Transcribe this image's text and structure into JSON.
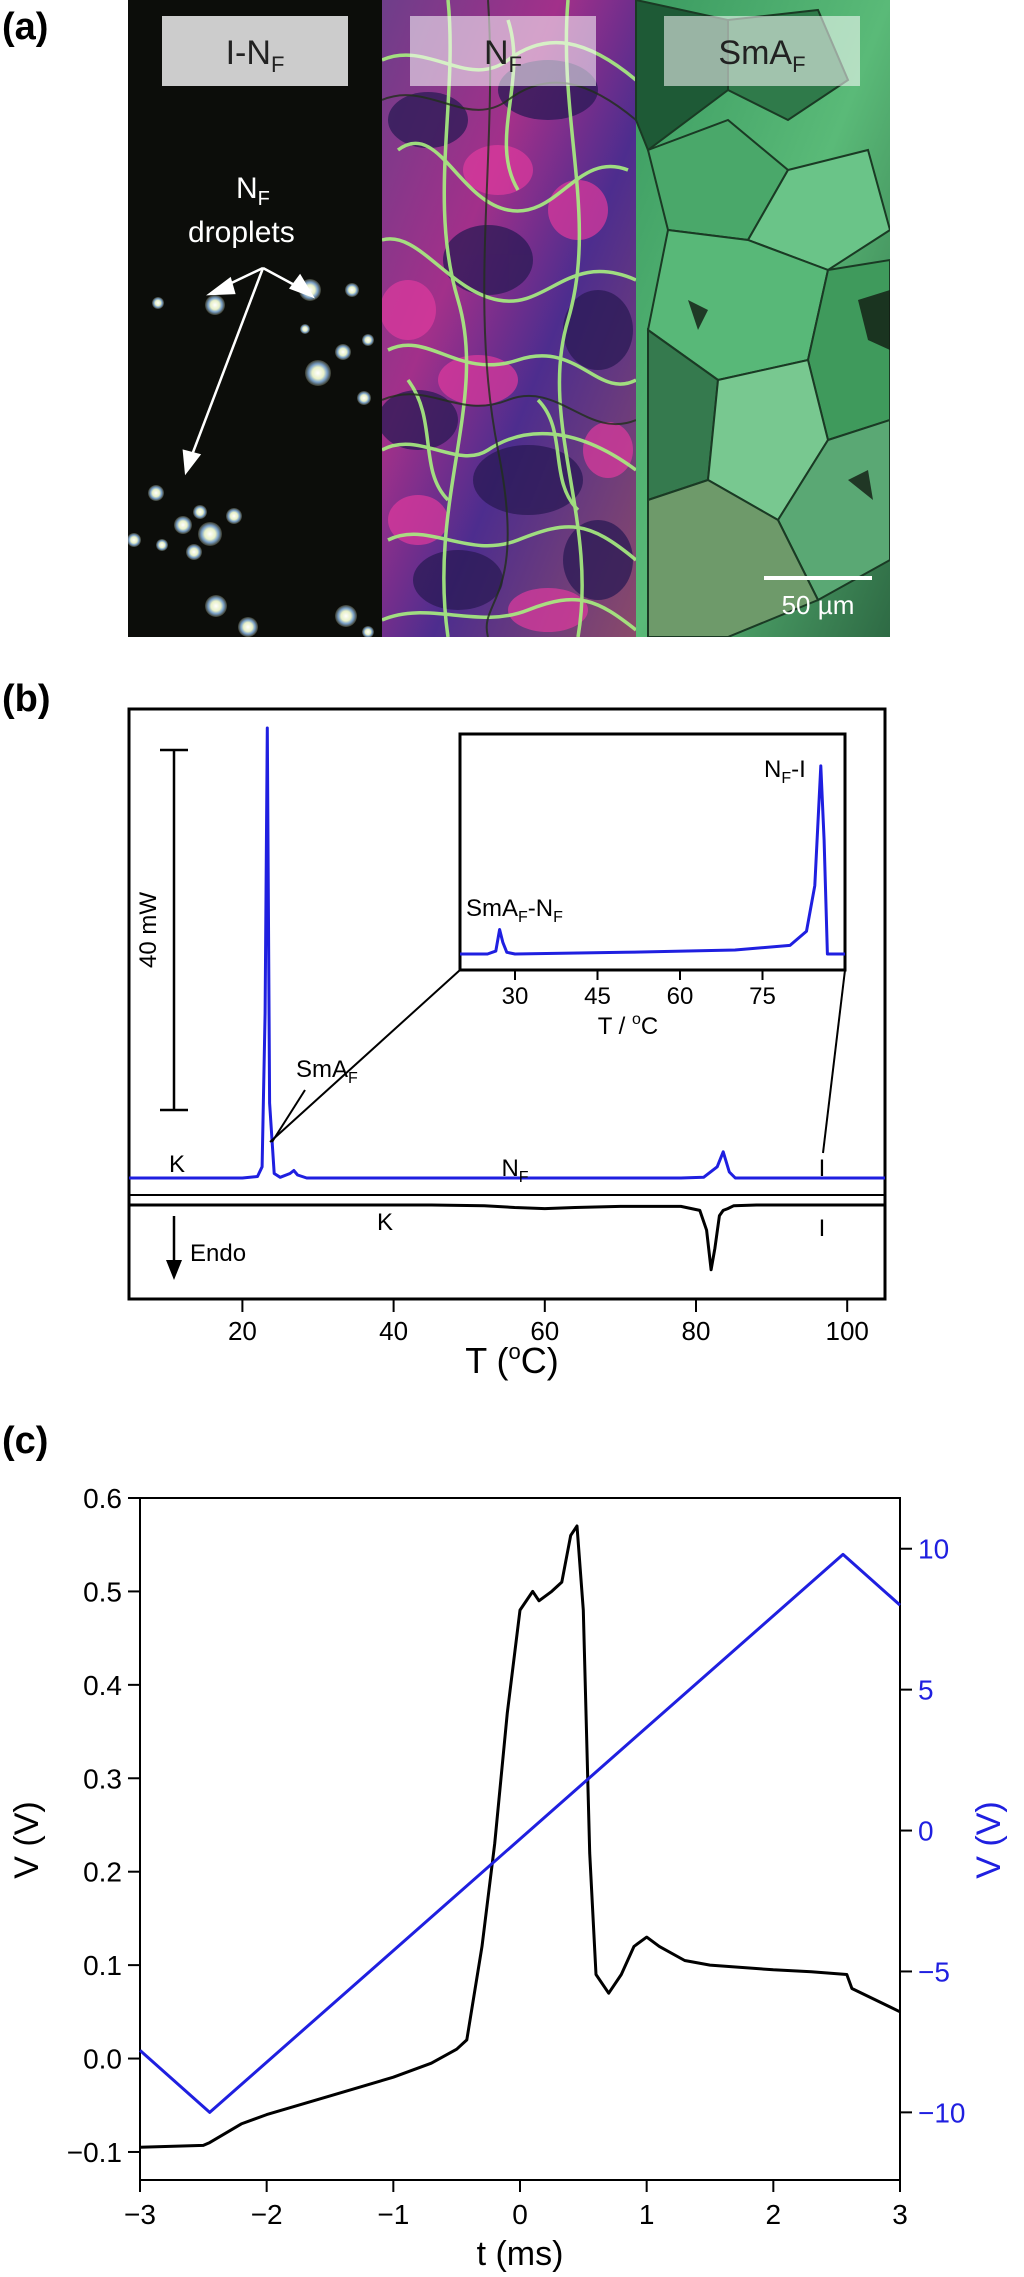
{
  "panel_a": {
    "label": "(a)",
    "images": [
      {
        "title": "I-N",
        "sub": "F"
      },
      {
        "title": "N",
        "sub": "F"
      },
      {
        "title": "SmA",
        "sub": "F"
      }
    ],
    "droplet_label_line1": "N",
    "droplet_label_sub": "F",
    "droplet_label_line2": "droplets",
    "scale_bar": "50 µm"
  },
  "panel_b": {
    "label": "(b)",
    "scale_label": "40 mW",
    "phase_K_top": "K",
    "phase_NF_main": "N",
    "phase_NF_sub": "F",
    "phase_I_top": "I",
    "phase_K_bottom": "K",
    "phase_I_bottom": "I",
    "smaf_label_main": "SmA",
    "smaf_label_sub": "F",
    "endo_label": "Endo",
    "inset_nfi_main": "N",
    "inset_nfi_sub": "F",
    "inset_nfi_tail": "-I",
    "inset_sman_main": "SmA",
    "inset_sman_sub1": "F",
    "inset_sman_mid": "-N",
    "inset_sman_sub2": "F",
    "inset_xlabel_main": "T / ",
    "inset_xlabel_sup": "o",
    "inset_xlabel_tail": "C",
    "xlabel_main": "T (",
    "xlabel_sup": "o",
    "xlabel_tail": "C)"
  },
  "panel_c": {
    "label": "(c)"
  },
  "chart_data": [
    {
      "type": "line",
      "id": "dsc",
      "x_ticks": [
        20,
        40,
        60,
        80,
        100
      ],
      "xlim": [
        5,
        105
      ],
      "series": [
        {
          "color": "#1f1fe0",
          "role": "cooling",
          "x": [
            5,
            20,
            22,
            22.6,
            23.0,
            23.3,
            23.6,
            24.2,
            25,
            26.3,
            26.8,
            27.3,
            28.5,
            40,
            60,
            78,
            81,
            82.8,
            83.6,
            84.4,
            85.2,
            90,
            105
          ],
          "y": [
            0,
            0,
            0.2,
            1.5,
            22,
            60,
            10,
            0.6,
            0.1,
            0.6,
            1.0,
            0.4,
            0,
            0,
            0,
            0,
            0.1,
            1.5,
            3.5,
            0.8,
            0,
            0,
            0
          ]
        },
        {
          "color": "#000000",
          "role": "heating",
          "x": [
            5,
            45,
            52,
            56,
            60,
            64,
            70,
            78,
            80.5,
            81.4,
            82.0,
            82.5,
            83.1,
            83.6,
            84.2,
            85,
            88,
            105
          ],
          "y": [
            0,
            0,
            -0.2,
            -0.7,
            -1.0,
            -0.7,
            -0.4,
            -0.4,
            -1.5,
            -7,
            -18,
            -12,
            -3,
            -1.5,
            -1.0,
            -0.2,
            0,
            0
          ]
        }
      ]
    },
    {
      "type": "line",
      "id": "dsc_inset",
      "x_ticks": [
        30,
        45,
        60,
        75
      ],
      "xlim": [
        20,
        90
      ],
      "series": [
        {
          "color": "#1f1fe0",
          "x": [
            20,
            25,
            26.5,
            27.2,
            27.8,
            28.5,
            30,
            50,
            70,
            80,
            83,
            84.5,
            85.6,
            86.2,
            86.8,
            90
          ],
          "y": [
            0,
            0,
            0.5,
            4.3,
            2.0,
            0.3,
            0,
            0.3,
            0.7,
            1.5,
            4,
            12,
            33,
            20,
            0,
            0
          ]
        }
      ]
    },
    {
      "type": "line",
      "id": "polarization",
      "x_ticks": [
        -3,
        -2,
        -1,
        0,
        1,
        2,
        3
      ],
      "xlim": [
        -3,
        3
      ],
      "xlabel": "t (ms)",
      "left_axis": {
        "label": "V (V)",
        "ticks": [
          "−0.1",
          "0.0",
          "0.1",
          "0.2",
          "0.3",
          "0.4",
          "0.5",
          "0.6"
        ],
        "tick_values": [
          -0.1,
          0,
          0.1,
          0.2,
          0.3,
          0.4,
          0.5,
          0.6
        ],
        "ylim": [
          -0.13,
          0.6
        ]
      },
      "right_axis": {
        "label": "V (V)",
        "ticks": [
          "−10",
          "−5",
          "0",
          "5",
          "10"
        ],
        "tick_values": [
          -10,
          -5,
          0,
          5,
          10
        ],
        "ylim": [
          -12.4,
          11.8
        ],
        "color": "#1f1fe0"
      },
      "series": [
        {
          "axis": "left",
          "color": "#000000",
          "x": [
            -3,
            -2.5,
            -2.45,
            -2.2,
            -2,
            -1.5,
            -1,
            -0.7,
            -0.5,
            -0.42,
            -0.3,
            -0.2,
            -0.1,
            0,
            0.1,
            0.15,
            0.25,
            0.33,
            0.4,
            0.45,
            0.5,
            0.55,
            0.6,
            0.7,
            0.8,
            0.9,
            1.0,
            1.1,
            1.3,
            1.5,
            2.0,
            2.3,
            2.58,
            2.62,
            3.0
          ],
          "y": [
            -0.095,
            -0.093,
            -0.09,
            -0.07,
            -0.06,
            -0.04,
            -0.02,
            -0.005,
            0.01,
            0.02,
            0.12,
            0.23,
            0.37,
            0.48,
            0.5,
            0.49,
            0.5,
            0.51,
            0.56,
            0.57,
            0.48,
            0.22,
            0.09,
            0.07,
            0.09,
            0.12,
            0.13,
            0.12,
            0.105,
            0.1,
            0.095,
            0.093,
            0.09,
            0.075,
            0.05
          ]
        },
        {
          "axis": "right",
          "color": "#1f1fe0",
          "x": [
            -3,
            -2.45,
            2.55,
            3
          ],
          "y": [
            -7.8,
            -10,
            9.8,
            8.0
          ]
        }
      ]
    }
  ]
}
